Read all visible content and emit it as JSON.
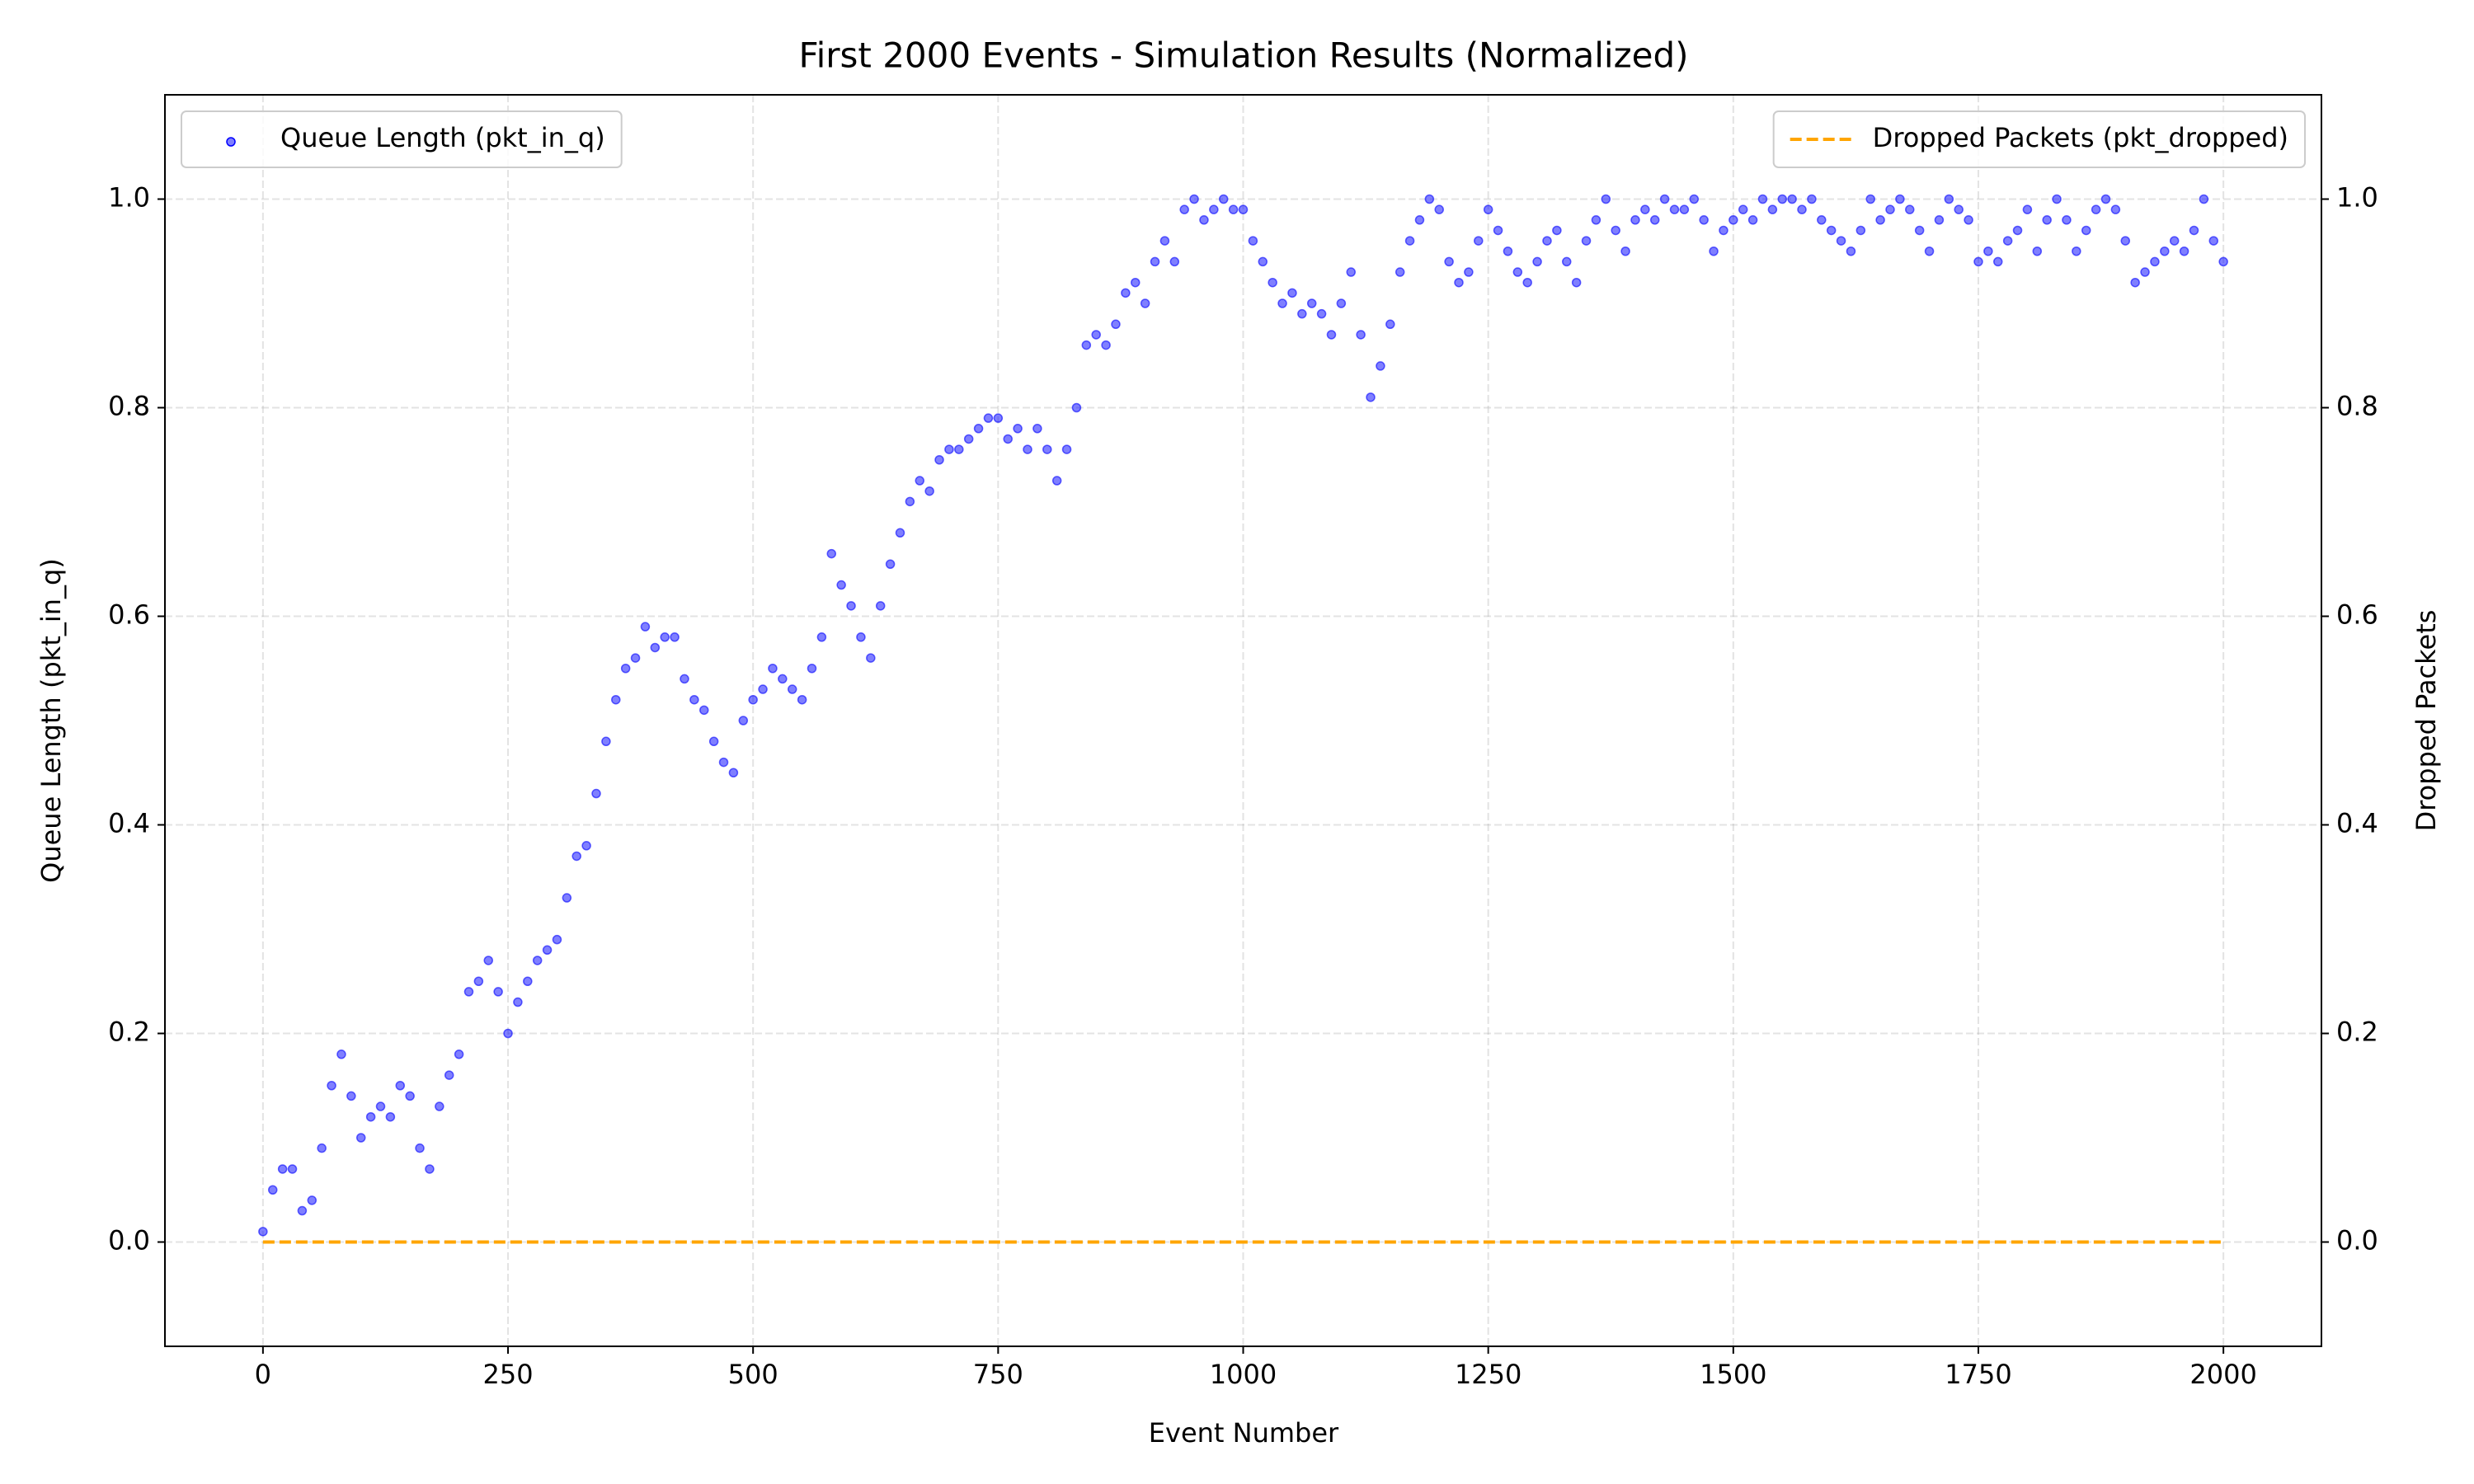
{
  "chart_data": {
    "type": "scatter",
    "title": "First 2000 Events - Simulation Results (Normalized)",
    "xlabel": "Event Number",
    "ylabel": "Queue Length (pkt_in_q)",
    "y2label": "Dropped Packets",
    "xlim": [
      -100,
      2100
    ],
    "ylim": [
      -0.1,
      1.1
    ],
    "y2lim": [
      -0.1,
      1.1
    ],
    "xticks": [
      0,
      250,
      500,
      750,
      1000,
      1250,
      1500,
      1750,
      2000
    ],
    "yticks": [
      {
        "value": 0,
        "label": "0.0"
      },
      0.2,
      0.4,
      0.6,
      0.8,
      {
        "value": 1,
        "label": "1.0"
      }
    ],
    "y2ticks": [
      {
        "value": 0,
        "label": "0.0"
      },
      0.2,
      0.4,
      0.6,
      0.8,
      {
        "value": 1,
        "label": "1.0"
      }
    ],
    "grid": true,
    "series": [
      {
        "name": "Queue Length (pkt_in_q)",
        "color": "#0000ff",
        "type": "scatter",
        "legend": "upper-left",
        "x": [
          0,
          10,
          20,
          30,
          40,
          50,
          60,
          70,
          80,
          90,
          100,
          110,
          120,
          130,
          140,
          150,
          160,
          170,
          180,
          190,
          200,
          210,
          220,
          230,
          240,
          250,
          260,
          270,
          280,
          290,
          300,
          310,
          320,
          330,
          340,
          350,
          360,
          370,
          380,
          390,
          400,
          410,
          420,
          430,
          440,
          450,
          460,
          470,
          480,
          490,
          500,
          510,
          520,
          530,
          540,
          550,
          560,
          570,
          580,
          590,
          600,
          610,
          620,
          630,
          640,
          650,
          660,
          670,
          680,
          690,
          700,
          710,
          720,
          730,
          740,
          750,
          760,
          770,
          780,
          790,
          800,
          810,
          820,
          830,
          840,
          850,
          860,
          870,
          880,
          890,
          900,
          910,
          920,
          930,
          940,
          950,
          960,
          970,
          980,
          990,
          1000,
          1010,
          1020,
          1030,
          1040,
          1050,
          1060,
          1070,
          1080,
          1090,
          1100,
          1110,
          1120,
          1130,
          1140,
          1150,
          1160,
          1170,
          1180,
          1190,
          1200,
          1210,
          1220,
          1230,
          1240,
          1250,
          1260,
          1270,
          1280,
          1290,
          1300,
          1310,
          1320,
          1330,
          1340,
          1350,
          1360,
          1370,
          1380,
          1390,
          1400,
          1410,
          1420,
          1430,
          1440,
          1450,
          1460,
          1470,
          1480,
          1490,
          1500,
          1510,
          1520,
          1530,
          1540,
          1550,
          1560,
          1570,
          1580,
          1590,
          1600,
          1610,
          1620,
          1630,
          1640,
          1650,
          1660,
          1670,
          1680,
          1690,
          1700,
          1710,
          1720,
          1730,
          1740,
          1750,
          1760,
          1770,
          1780,
          1790,
          1800,
          1810,
          1820,
          1830,
          1840,
          1850,
          1860,
          1870,
          1880,
          1890,
          1900,
          1910,
          1920,
          1930,
          1940,
          1950,
          1960,
          1970,
          1980,
          1990,
          2000
        ],
        "values": [
          0.01,
          0.05,
          0.07,
          0.07,
          0.03,
          0.04,
          0.09,
          0.15,
          0.18,
          0.14,
          0.1,
          0.12,
          0.13,
          0.12,
          0.15,
          0.14,
          0.09,
          0.07,
          0.13,
          0.16,
          0.18,
          0.24,
          0.25,
          0.27,
          0.24,
          0.2,
          0.23,
          0.25,
          0.27,
          0.28,
          0.29,
          0.33,
          0.37,
          0.38,
          0.43,
          0.48,
          0.52,
          0.55,
          0.56,
          0.59,
          0.57,
          0.58,
          0.58,
          0.54,
          0.52,
          0.51,
          0.48,
          0.46,
          0.45,
          0.5,
          0.52,
          0.53,
          0.55,
          0.54,
          0.53,
          0.52,
          0.55,
          0.58,
          0.66,
          0.63,
          0.61,
          0.58,
          0.56,
          0.61,
          0.65,
          0.68,
          0.71,
          0.73,
          0.72,
          0.75,
          0.76,
          0.76,
          0.77,
          0.78,
          0.79,
          0.79,
          0.77,
          0.78,
          0.76,
          0.78,
          0.76,
          0.73,
          0.76,
          0.8,
          0.86,
          0.87,
          0.86,
          0.88,
          0.91,
          0.92,
          0.9,
          0.94,
          0.96,
          0.94,
          0.99,
          1.0,
          0.98,
          0.99,
          1.0,
          0.99,
          0.99,
          0.96,
          0.94,
          0.92,
          0.9,
          0.91,
          0.89,
          0.9,
          0.89,
          0.87,
          0.9,
          0.93,
          0.87,
          0.81,
          0.84,
          0.88,
          0.93,
          0.96,
          0.98,
          1.0,
          0.99,
          0.94,
          0.92,
          0.93,
          0.96,
          0.99,
          0.97,
          0.95,
          0.93,
          0.92,
          0.94,
          0.96,
          0.97,
          0.94,
          0.92,
          0.96,
          0.98,
          1.0,
          0.97,
          0.95,
          0.98,
          0.99,
          0.98,
          1.0,
          0.99,
          0.99,
          1.0,
          0.98,
          0.95,
          0.97,
          0.98,
          0.99,
          0.98,
          1.0,
          0.99,
          1.0,
          1.0,
          0.99,
          1.0,
          0.98,
          0.97,
          0.96,
          0.95,
          0.97,
          1.0,
          0.98,
          0.99,
          1.0,
          0.99,
          0.97,
          0.95,
          0.98,
          1.0,
          0.99,
          0.98,
          0.94,
          0.95,
          0.94,
          0.96,
          0.97,
          0.99,
          0.95,
          0.98,
          1.0,
          0.98,
          0.95,
          0.97,
          0.99,
          1.0,
          0.99,
          0.96,
          0.92,
          0.93,
          0.94,
          0.95,
          0.96,
          0.95,
          0.97,
          1.0,
          0.96,
          0.94
        ]
      },
      {
        "name": "Dropped Packets (pkt_dropped)",
        "color": "#ffa500",
        "type": "line",
        "axis": "y2",
        "linestyle": "dashed",
        "legend": "upper-right",
        "x": [
          0,
          2000
        ],
        "values": [
          0,
          0
        ]
      }
    ]
  }
}
